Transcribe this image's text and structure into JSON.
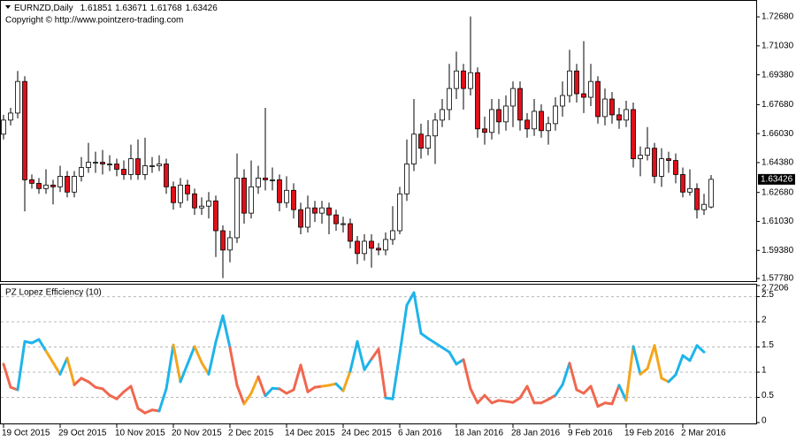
{
  "chart_data": [
    {
      "type": "candlestick",
      "title": "EURNZD,Daily",
      "subtitle": "Copyright © http://www.pointzero-trading.com",
      "categories": [
        "19 Oct 2015",
        null,
        null,
        null,
        null,
        null,
        null,
        null,
        "29 Oct 2015",
        null,
        null,
        null,
        null,
        null,
        null,
        null,
        "10 Nov 2015",
        null,
        null,
        null,
        null,
        null,
        null,
        null,
        "20 Nov 2015",
        null,
        null,
        null,
        null,
        null,
        null,
        null,
        "2 Dec 2015",
        null,
        null,
        null,
        null,
        null,
        null,
        null,
        "14 Dec 2015",
        null,
        null,
        null,
        null,
        null,
        null,
        null,
        "24 Dec 2015",
        null,
        null,
        null,
        null,
        null,
        null,
        null,
        "6 Jan 2016",
        null,
        null,
        null,
        null,
        null,
        null,
        null,
        "18 Jan 2016",
        null,
        null,
        null,
        null,
        null,
        null,
        null,
        "28 Jan 2016",
        null,
        null,
        null,
        null,
        null,
        null,
        null,
        "9 Feb 2016",
        null,
        null,
        null,
        null,
        null,
        null,
        null,
        "19 Feb 2016",
        null,
        null,
        null,
        null,
        null,
        null,
        null,
        "2 Mar 2016",
        null,
        null,
        null,
        null
      ],
      "open": [
        1.66,
        1.668,
        1.672,
        1.69,
        1.634,
        1.632,
        1.629,
        1.631,
        1.63,
        1.636,
        1.627,
        1.636,
        1.641,
        1.644,
        1.644,
        1.643,
        1.643,
        1.64,
        1.637,
        1.646,
        1.637,
        1.642,
        1.642,
        1.643,
        1.63,
        1.621,
        1.631,
        1.626,
        1.618,
        1.619,
        1.622,
        1.605,
        1.594,
        1.601,
        1.635,
        1.615,
        1.63,
        1.635,
        1.634,
        1.634,
        1.621,
        1.628,
        1.617,
        1.607,
        1.618,
        1.615,
        1.618,
        1.614,
        1.609,
        1.609,
        1.599,
        1.592,
        1.599,
        1.595,
        1.594,
        1.6,
        1.605,
        1.626,
        1.643,
        1.66,
        1.652,
        1.659,
        1.668,
        1.674,
        1.686,
        1.696,
        1.686,
        1.695,
        1.663,
        1.661,
        1.674,
        1.667,
        1.676,
        1.686,
        1.668,
        1.663,
        1.673,
        1.662,
        1.666,
        1.676,
        1.682,
        1.696,
        1.683,
        1.681,
        1.69,
        1.67,
        1.68,
        1.671,
        1.668,
        1.674,
        1.646,
        1.648,
        1.652,
        1.636,
        1.646,
        1.645,
        1.637,
        1.627,
        1.629,
        1.617,
        1.61851
      ],
      "high": [
        1.671,
        1.675,
        1.696,
        1.693,
        1.637,
        1.635,
        1.64,
        1.634,
        1.642,
        1.639,
        1.639,
        1.647,
        1.655,
        1.65,
        1.651,
        1.648,
        1.646,
        1.645,
        1.654,
        1.657,
        1.658,
        1.647,
        1.648,
        1.646,
        1.633,
        1.635,
        1.634,
        1.629,
        1.624,
        1.627,
        1.625,
        1.608,
        1.605,
        1.649,
        1.64,
        1.645,
        1.642,
        1.675,
        1.641,
        1.637,
        1.636,
        1.632,
        1.621,
        1.625,
        1.622,
        1.622,
        1.621,
        1.617,
        1.613,
        1.612,
        1.602,
        1.603,
        1.603,
        1.598,
        1.604,
        1.619,
        1.63,
        1.657,
        1.68,
        1.666,
        1.668,
        1.672,
        1.68,
        1.7,
        1.707,
        1.7,
        1.727,
        1.698,
        1.67,
        1.68,
        1.68,
        1.682,
        1.69,
        1.69,
        1.672,
        1.68,
        1.677,
        1.67,
        1.681,
        1.69,
        1.708,
        1.7,
        1.713,
        1.7,
        1.693,
        1.686,
        1.684,
        1.675,
        1.679,
        1.678,
        1.653,
        1.664,
        1.655,
        1.652,
        1.65,
        1.649,
        1.641,
        1.64,
        1.632,
        1.626,
        1.63671
      ],
      "low": [
        1.657,
        1.665,
        1.669,
        1.616,
        1.629,
        1.626,
        1.626,
        1.62,
        1.627,
        1.624,
        1.624,
        1.633,
        1.638,
        1.638,
        1.637,
        1.639,
        1.636,
        1.634,
        1.634,
        1.634,
        1.634,
        1.638,
        1.639,
        1.626,
        1.617,
        1.618,
        1.622,
        1.614,
        1.614,
        1.612,
        1.59,
        1.578,
        1.587,
        1.598,
        1.609,
        1.612,
        1.626,
        1.628,
        1.628,
        1.616,
        1.618,
        1.612,
        1.603,
        1.604,
        1.61,
        1.609,
        1.603,
        1.605,
        1.604,
        1.595,
        1.586,
        1.588,
        1.584,
        1.591,
        1.591,
        1.597,
        1.603,
        1.622,
        1.639,
        1.646,
        1.648,
        1.643,
        1.664,
        1.668,
        1.68,
        1.674,
        1.682,
        1.658,
        1.654,
        1.657,
        1.66,
        1.662,
        1.664,
        1.662,
        1.658,
        1.659,
        1.658,
        1.654,
        1.662,
        1.67,
        1.678,
        1.678,
        1.672,
        1.676,
        1.666,
        1.665,
        1.666,
        1.663,
        1.664,
        1.641,
        1.636,
        1.645,
        1.632,
        1.63,
        1.638,
        1.632,
        1.624,
        1.625,
        1.612,
        1.614,
        1.61768
      ],
      "close": [
        1.668,
        1.672,
        1.69,
        1.634,
        1.632,
        1.629,
        1.631,
        1.63,
        1.636,
        1.627,
        1.636,
        1.641,
        1.644,
        1.644,
        1.643,
        1.643,
        1.64,
        1.637,
        1.646,
        1.637,
        1.642,
        1.642,
        1.643,
        1.63,
        1.621,
        1.631,
        1.626,
        1.618,
        1.619,
        1.622,
        1.605,
        1.594,
        1.601,
        1.635,
        1.615,
        1.63,
        1.635,
        1.634,
        1.634,
        1.621,
        1.628,
        1.617,
        1.607,
        1.618,
        1.615,
        1.618,
        1.614,
        1.609,
        1.609,
        1.599,
        1.592,
        1.599,
        1.595,
        1.594,
        1.6,
        1.605,
        1.626,
        1.643,
        1.66,
        1.652,
        1.659,
        1.668,
        1.674,
        1.686,
        1.696,
        1.686,
        1.695,
        1.663,
        1.661,
        1.674,
        1.667,
        1.676,
        1.686,
        1.668,
        1.663,
        1.673,
        1.662,
        1.666,
        1.676,
        1.682,
        1.696,
        1.683,
        1.681,
        1.69,
        1.67,
        1.68,
        1.671,
        1.668,
        1.674,
        1.646,
        1.648,
        1.652,
        1.636,
        1.646,
        1.645,
        1.637,
        1.627,
        1.629,
        1.617,
        1.62,
        1.63426
      ],
      "up_color": "#ffffff",
      "down_color": "#e0101a",
      "ylim": [
        1.5763,
        1.7359
      ],
      "yticks": [
        {
          "value": 1.7268,
          "label": "1.72680"
        },
        {
          "value": 1.7103,
          "label": "1.71030"
        },
        {
          "value": 1.6938,
          "label": "1.69380"
        },
        {
          "value": 1.6768,
          "label": "1.67680"
        },
        {
          "value": 1.6603,
          "label": "1.66030"
        },
        {
          "value": 1.6438,
          "label": "1.64380"
        },
        {
          "value": 1.6268,
          "label": "1.62680"
        },
        {
          "value": 1.6103,
          "label": "1.61030"
        },
        {
          "value": 1.5938,
          "label": "1.59380"
        },
        {
          "value": 1.5778,
          "label": "1.57780"
        }
      ]
    },
    {
      "type": "line",
      "title": "PZ Lopez Efficiency (10)",
      "values": [
        1.16,
        0.7,
        0.65,
        1.61,
        1.58,
        1.65,
        1.42,
        1.19,
        0.96,
        1.28,
        0.75,
        0.88,
        0.81,
        0.7,
        0.67,
        0.54,
        0.47,
        0.61,
        0.72,
        0.28,
        0.19,
        0.25,
        0.23,
        0.67,
        1.54,
        0.81,
        1.16,
        1.51,
        1.19,
        0.96,
        1.6,
        2.12,
        1.49,
        0.74,
        0.37,
        0.58,
        0.91,
        0.53,
        0.68,
        0.67,
        0.58,
        0.65,
        1.14,
        0.61,
        0.7,
        0.72,
        0.74,
        0.77,
        0.63,
        1.02,
        1.61,
        1.05,
        1.26,
        1.46,
        0.49,
        0.47,
        1.37,
        2.33,
        2.58,
        1.77,
        1.67,
        1.58,
        1.49,
        1.4,
        1.16,
        1.25,
        0.67,
        0.39,
        0.54,
        0.39,
        0.44,
        0.42,
        0.4,
        0.49,
        0.72,
        0.39,
        0.39,
        0.46,
        0.54,
        0.75,
        1.18,
        0.65,
        0.58,
        0.72,
        0.32,
        0.39,
        0.37,
        0.74,
        0.44,
        1.51,
        0.96,
        1.07,
        1.53,
        0.88,
        0.81,
        0.95,
        1.33,
        1.23,
        1.53,
        1.4,
        null
      ],
      "segment_colors": [
        "#f0674f",
        "#f0674f",
        "#1eb4ea",
        "#1eb4ea",
        "#1eb4ea",
        "#1eb4ea",
        "#f5a51c",
        "#f5a51c",
        "#1eb4ea",
        "#f5a51c",
        "#f0674f",
        "#f0674f",
        "#f0674f",
        "#f0674f",
        "#f0674f",
        "#f0674f",
        "#f0674f",
        "#f0674f",
        "#f0674f",
        "#f0674f",
        "#f0674f",
        "#f0674f",
        "#1eb4ea",
        "#1eb4ea",
        "#f5a51c",
        "#1eb4ea",
        "#1eb4ea",
        "#f5a51c",
        "#f5a51c",
        "#1eb4ea",
        "#1eb4ea",
        "#1eb4ea",
        "#f0674f",
        "#f0674f",
        "#f5a51c",
        "#f5a51c",
        "#f0674f",
        "#1eb4ea",
        "#1eb4ea",
        "#f0674f",
        "#f0674f",
        "#f0674f",
        "#f0674f",
        "#f0674f",
        "#f0674f",
        "#f5a51c",
        "#f5a51c",
        "#1eb4ea",
        "#f5a51c",
        "#1eb4ea",
        "#1eb4ea",
        "#1eb4ea",
        "#f0674f",
        "#f0674f",
        "#1eb4ea",
        "#1eb4ea",
        "#1eb4ea",
        "#1eb4ea",
        "#1eb4ea",
        "#1eb4ea",
        "#1eb4ea",
        "#1eb4ea",
        "#1eb4ea",
        "#1eb4ea",
        "#1eb4ea",
        "#f0674f",
        "#f0674f",
        "#f0674f",
        "#f0674f",
        "#f0674f",
        "#f0674f",
        "#f0674f",
        "#f0674f",
        "#f0674f",
        "#f0674f",
        "#f0674f",
        "#f0674f",
        "#f0674f",
        "#1eb4ea",
        "#1eb4ea",
        "#f0674f",
        "#f0674f",
        "#f0674f",
        "#f0674f",
        "#f0674f",
        "#f0674f",
        "#f0674f",
        "#1eb4ea",
        "#f5a51c",
        "#1eb4ea",
        "#f5a51c",
        "#f5a51c",
        "#f5a51c",
        "#f5a51c",
        "#1eb4ea",
        "#1eb4ea",
        "#1eb4ea",
        "#1eb4ea",
        "#1eb4ea"
      ],
      "ylim": [
        0,
        2.7206
      ],
      "yticks": [
        2.7206,
        2.5,
        2,
        1.5,
        1,
        0.5,
        0
      ],
      "grid": true
    }
  ]
}
